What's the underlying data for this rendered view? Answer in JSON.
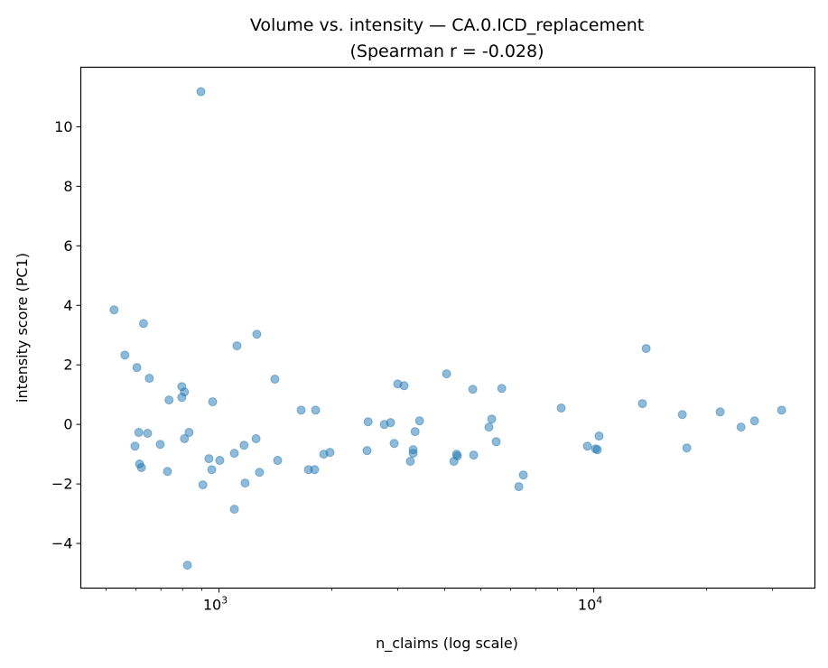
{
  "chart_data": {
    "type": "scatter",
    "title": "Volume vs. intensity — CA.0.ICD_replacement",
    "subtitle": "(Spearman r = -0.028)",
    "xlabel": "n_claims (log scale)",
    "ylabel": "intensity score (PC1)",
    "xscale": "log",
    "xlim": [
      428,
      38900
    ],
    "ylim": [
      -5.5,
      12.0
    ],
    "grid": false,
    "marker_color": "#1f77b4",
    "marker_alpha": 0.5,
    "x_ticks": [
      {
        "value": 1000,
        "base": "10",
        "exp": "3"
      },
      {
        "value": 10000,
        "base": "10",
        "exp": "4"
      }
    ],
    "y_ticks": [
      {
        "value": -4,
        "label": "−4"
      },
      {
        "value": -2,
        "label": "−2"
      },
      {
        "value": 0,
        "label": "0"
      },
      {
        "value": 2,
        "label": "2"
      },
      {
        "value": 4,
        "label": "4"
      },
      {
        "value": 6,
        "label": "6"
      },
      {
        "value": 8,
        "label": "8"
      },
      {
        "value": 10,
        "label": "10"
      }
    ],
    "points": [
      [
        525,
        3.85
      ],
      [
        561,
        2.33
      ],
      [
        604,
        1.91
      ],
      [
        629,
        3.39
      ],
      [
        652,
        1.55
      ],
      [
        597,
        -0.73
      ],
      [
        611,
        -0.27
      ],
      [
        645,
        -0.3
      ],
      [
        614,
        -1.33
      ],
      [
        621,
        -1.45
      ],
      [
        697,
        -0.67
      ],
      [
        736,
        0.82
      ],
      [
        729,
        -1.58
      ],
      [
        796,
        1.27
      ],
      [
        809,
        1.09
      ],
      [
        796,
        0.91
      ],
      [
        809,
        -0.48
      ],
      [
        832,
        -0.27
      ],
      [
        895,
        11.18
      ],
      [
        824,
        -4.73
      ],
      [
        906,
        -2.03
      ],
      [
        940,
        -1.15
      ],
      [
        957,
        -1.52
      ],
      [
        962,
        0.76
      ],
      [
        1005,
        -1.21
      ],
      [
        1099,
        -0.97
      ],
      [
        1117,
        2.64
      ],
      [
        1099,
        -2.85
      ],
      [
        1167,
        -0.7
      ],
      [
        1174,
        -1.97
      ],
      [
        1256,
        -0.48
      ],
      [
        1262,
        3.03
      ],
      [
        1283,
        -1.61
      ],
      [
        1410,
        1.52
      ],
      [
        1434,
        -1.21
      ],
      [
        1657,
        0.48
      ],
      [
        1733,
        -1.52
      ],
      [
        1800,
        -1.52
      ],
      [
        1811,
        0.48
      ],
      [
        1904,
        -1.0
      ],
      [
        1978,
        -0.94
      ],
      [
        2483,
        -0.88
      ],
      [
        2500,
        0.09
      ],
      [
        2761,
        0.0
      ],
      [
        2870,
        0.06
      ],
      [
        2934,
        -0.64
      ],
      [
        2999,
        1.36
      ],
      [
        3118,
        1.3
      ],
      [
        3241,
        -1.24
      ],
      [
        3297,
        -0.85
      ],
      [
        3297,
        -0.97
      ],
      [
        3336,
        -0.24
      ],
      [
        3429,
        0.12
      ],
      [
        4049,
        1.7
      ],
      [
        4235,
        -1.24
      ],
      [
        4304,
        -1.0
      ],
      [
        4326,
        -1.06
      ],
      [
        4755,
        1.18
      ],
      [
        4782,
        -1.03
      ],
      [
        5252,
        -0.09
      ],
      [
        5341,
        0.18
      ],
      [
        5491,
        -0.58
      ],
      [
        5681,
        1.21
      ],
      [
        6310,
        -2.09
      ],
      [
        6486,
        -1.7
      ],
      [
        8186,
        0.55
      ],
      [
        9614,
        -0.73
      ],
      [
        10105,
        -0.82
      ],
      [
        10222,
        -0.85
      ],
      [
        10329,
        -0.39
      ],
      [
        13482,
        0.7
      ],
      [
        13793,
        2.55
      ],
      [
        17226,
        0.33
      ],
      [
        17711,
        -0.79
      ],
      [
        21738,
        0.42
      ],
      [
        24710,
        -0.09
      ],
      [
        26846,
        0.12
      ],
      [
        31714,
        0.48
      ]
    ]
  }
}
